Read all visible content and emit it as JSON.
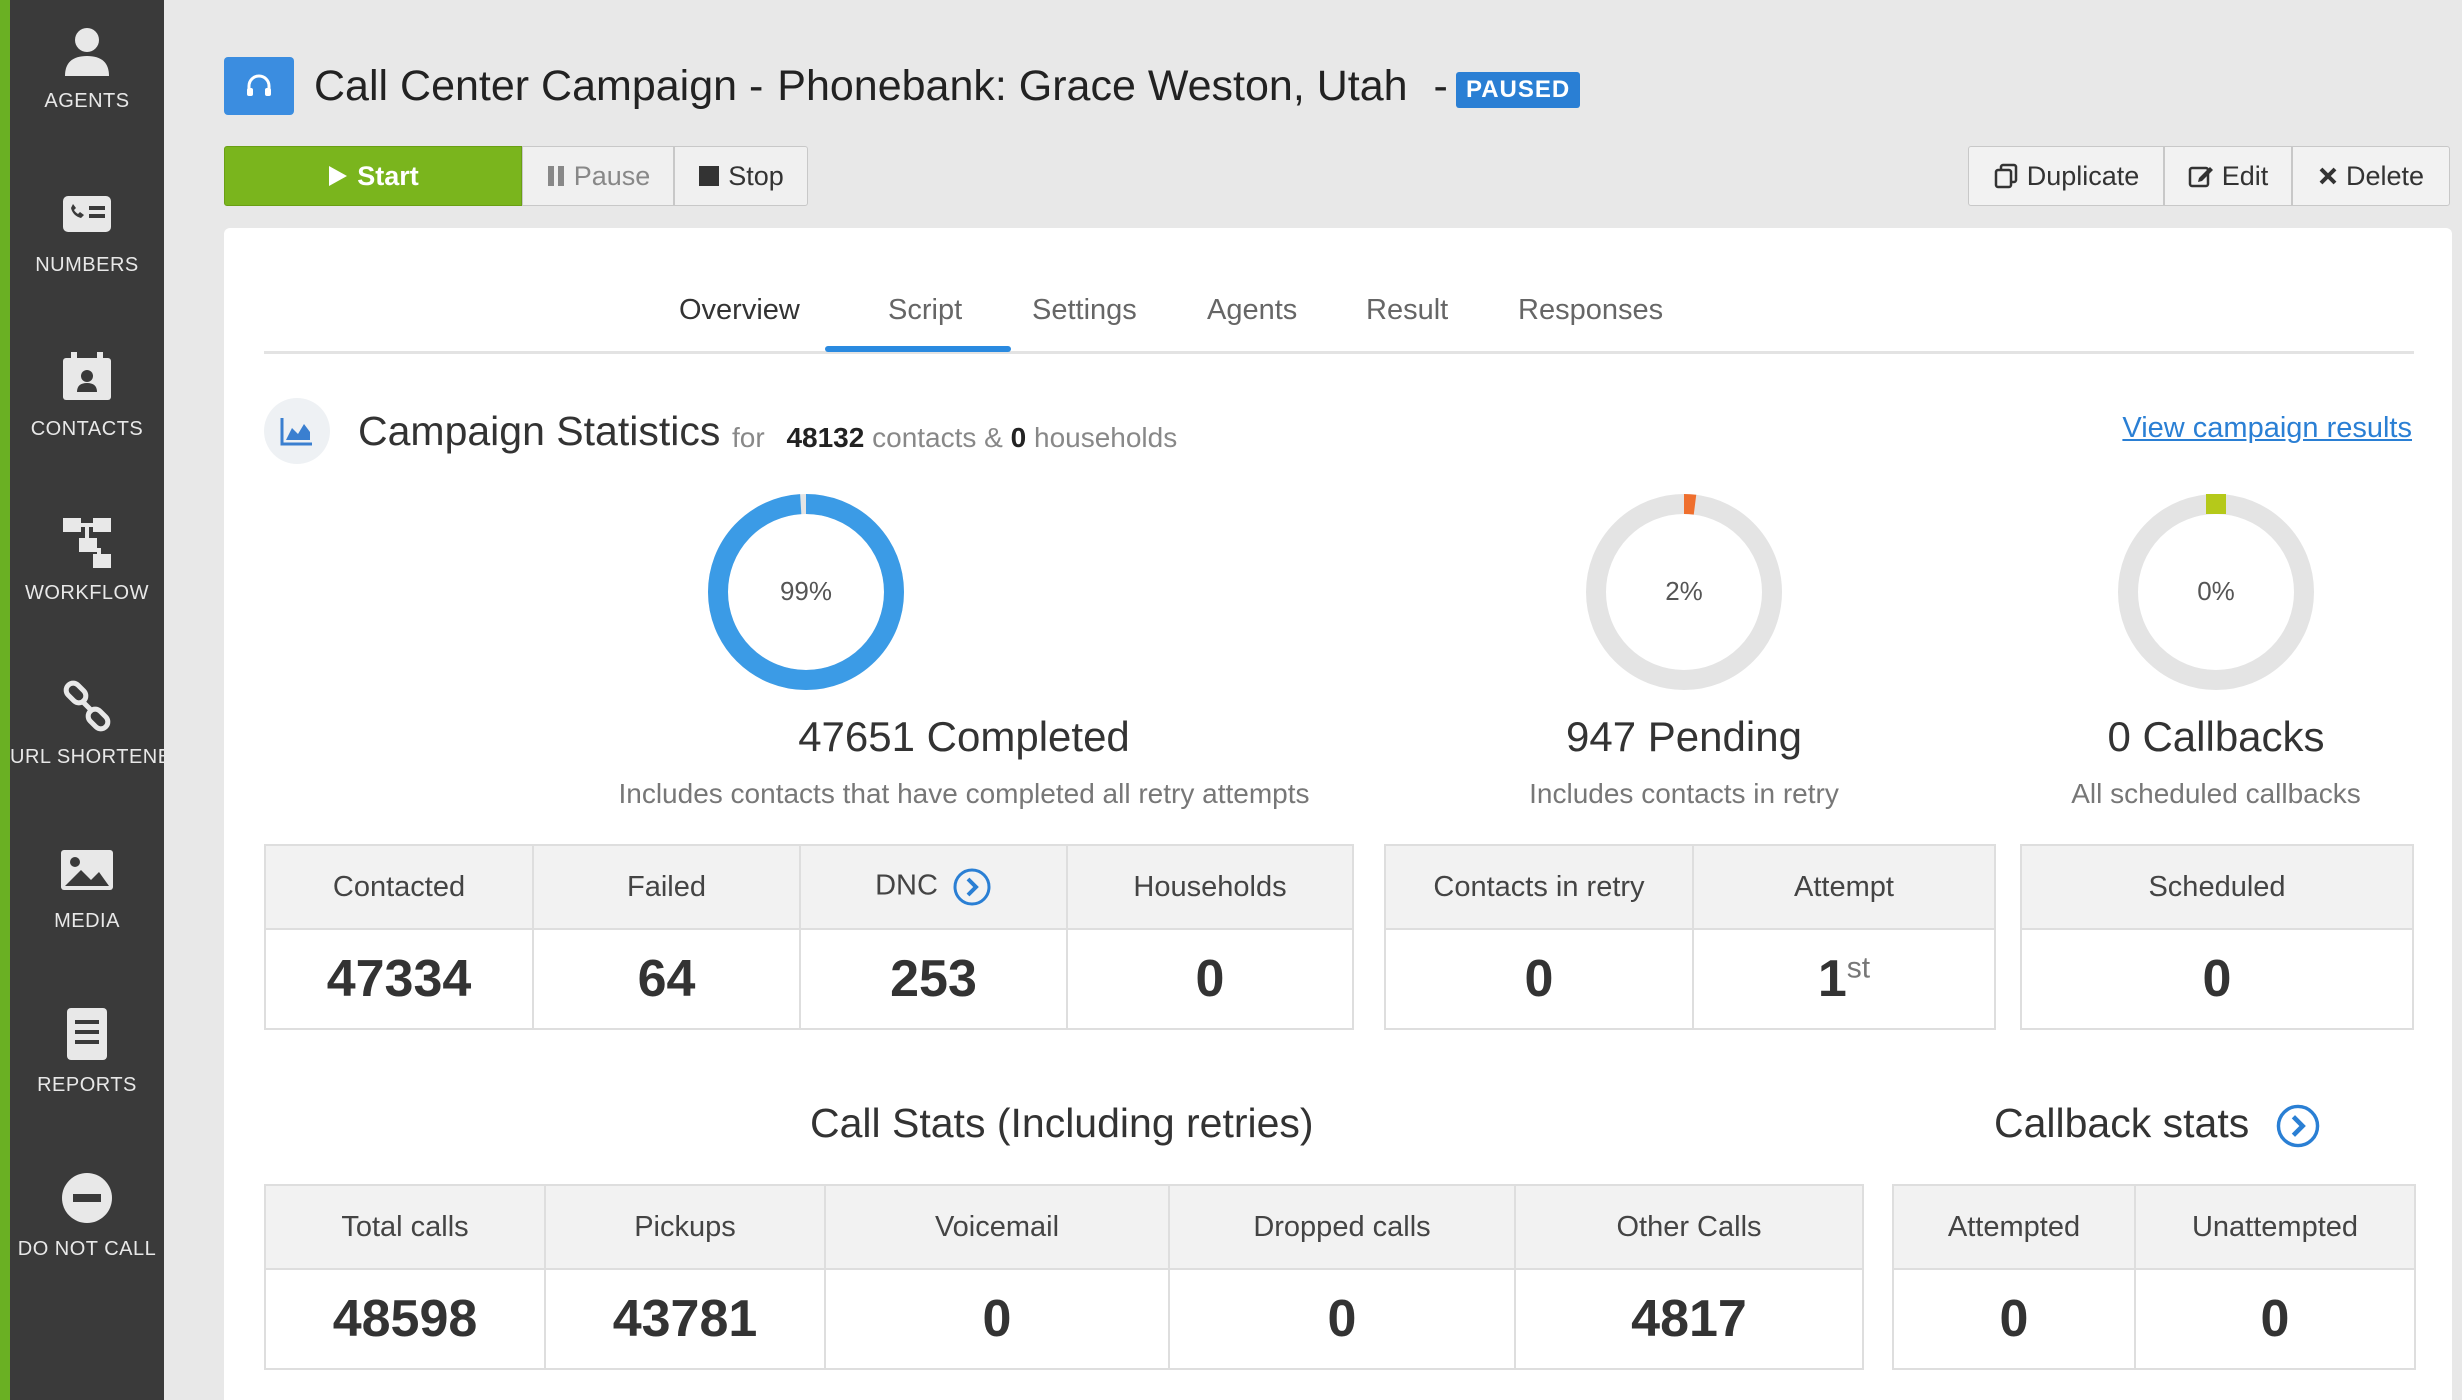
{
  "sidebar": {
    "items": [
      {
        "label": "AGENTS",
        "icon": "user-icon"
      },
      {
        "label": "NUMBERS",
        "icon": "phone-card-icon"
      },
      {
        "label": "CONTACTS",
        "icon": "contacts-icon"
      },
      {
        "label": "WORKFLOW",
        "icon": "workflow-icon"
      },
      {
        "label": "URL SHORTENER",
        "icon": "link-icon"
      },
      {
        "label": "MEDIA",
        "icon": "image-icon"
      },
      {
        "label": "REPORTS",
        "icon": "document-icon"
      },
      {
        "label": "DO NOT CALL",
        "icon": "minus-circle-icon"
      }
    ]
  },
  "header": {
    "title": "Call Center Campaign -",
    "subtitle": "Phonebank: Grace Weston, Utah",
    "dash": "-",
    "status": "PAUSED"
  },
  "controls": {
    "start": "Start",
    "pause": "Pause",
    "stop": "Stop",
    "duplicate": "Duplicate",
    "edit": "Edit",
    "delete": "Delete"
  },
  "tabs": [
    "Overview",
    "Script",
    "Settings",
    "Agents",
    "Result",
    "Responses"
  ],
  "active_tab": "Overview",
  "stats": {
    "title": "Campaign Statistics",
    "for": "for",
    "contacts": "48132",
    "contacts_label": "contacts &",
    "households": "0",
    "households_label": "households",
    "view_link": "View campaign results"
  },
  "donuts": {
    "completed": {
      "percent_label": "99%",
      "fraction": 0.99,
      "count": "47651",
      "label": "Completed",
      "desc": "Includes contacts that have completed all retry attempts",
      "color": "#3b9be6"
    },
    "pending": {
      "percent_label": "2%",
      "fraction": 0.02,
      "count": "947",
      "label": "Pending",
      "desc": "Includes contacts in retry",
      "color": "#ef6f2e"
    },
    "callbacks": {
      "percent_label": "0%",
      "fraction": 0.0,
      "count": "0",
      "label": "Callbacks",
      "desc": "All scheduled callbacks",
      "color": "#b5c91a"
    }
  },
  "completed_table": {
    "headers": [
      "Contacted",
      "Failed",
      "DNC",
      "Households"
    ],
    "values": [
      "47334",
      "64",
      "253",
      "0"
    ]
  },
  "pending_table": {
    "headers": [
      "Contacts in retry",
      "Attempt"
    ],
    "values": [
      "0",
      "1"
    ],
    "attempt_suffix": "st"
  },
  "callbacks_table": {
    "headers": [
      "Scheduled"
    ],
    "values": [
      "0"
    ]
  },
  "call_stats": {
    "title": "Call Stats (Including retries)",
    "headers": [
      "Total calls",
      "Pickups",
      "Voicemail",
      "Dropped calls",
      "Other Calls"
    ],
    "values": [
      "48598",
      "43781",
      "0",
      "0",
      "4817"
    ]
  },
  "callback_stats": {
    "title": "Callback stats",
    "headers": [
      "Attempted",
      "Unattempted"
    ],
    "values": [
      "0",
      "0"
    ]
  }
}
